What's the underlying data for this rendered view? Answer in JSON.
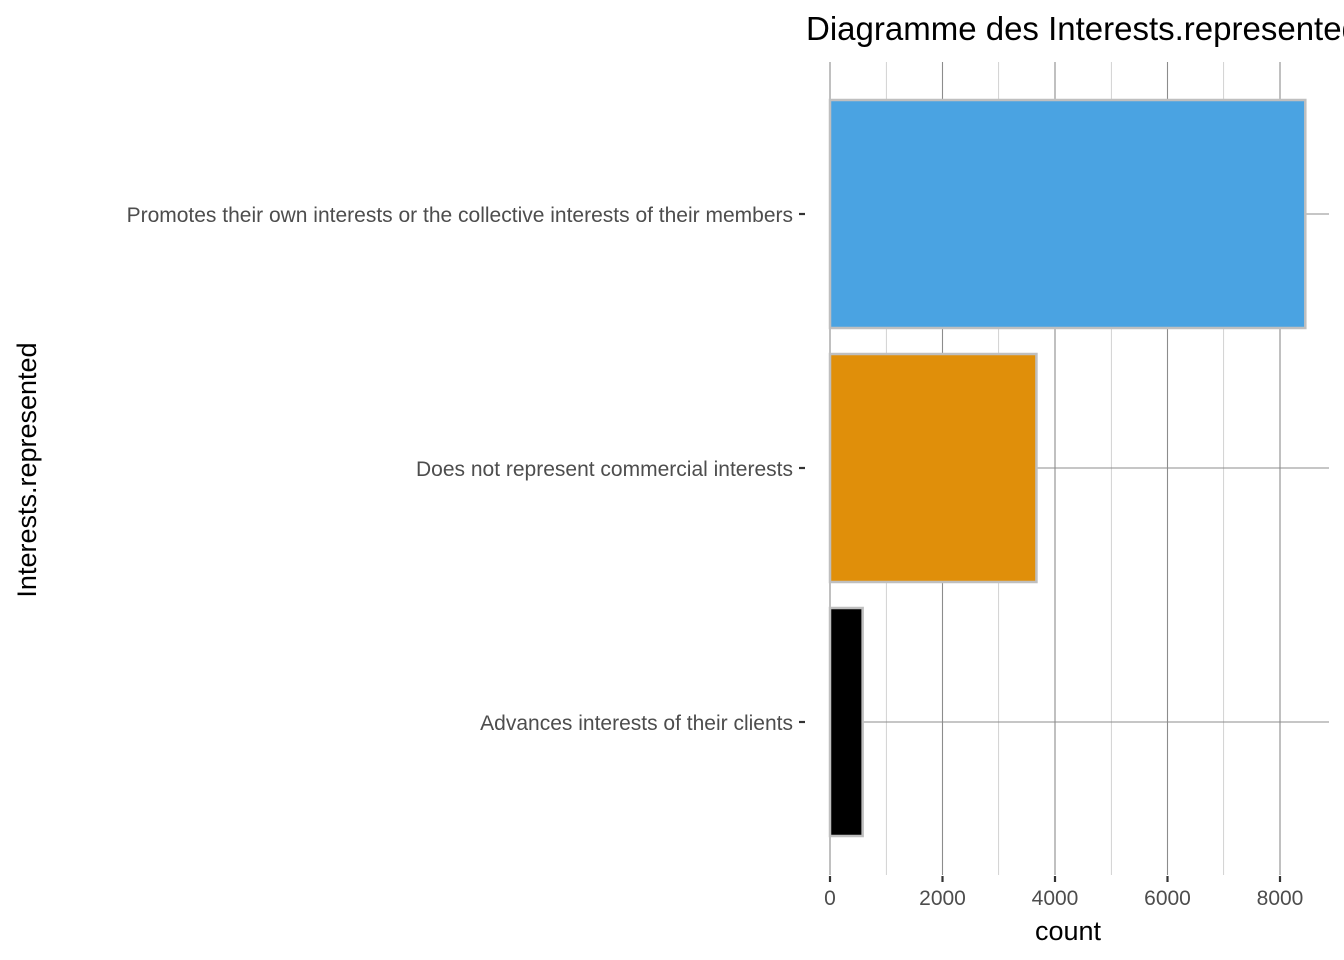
{
  "chart_data": {
    "type": "bar",
    "orientation": "horizontal",
    "title": "Diagramme des Interests.represented",
    "xlabel": "count",
    "ylabel": "Interests.represented",
    "categories": [
      "Promotes their own interests or the collective interests of their members",
      "Does not represent commercial interests",
      "Advances interests of their clients"
    ],
    "values": [
      8450,
      3670,
      580
    ],
    "colors": [
      "#4aa3e2",
      "#e08f0a",
      "#000000"
    ],
    "bar_outline_color": "#bfbfbf",
    "xlim": [
      0,
      8900
    ],
    "x_ticks": [
      0,
      2000,
      4000,
      6000,
      8000
    ],
    "x_tick_labels": [
      "0",
      "2000",
      "4000",
      "6000",
      "8000"
    ],
    "grid": true,
    "legend": "none"
  }
}
